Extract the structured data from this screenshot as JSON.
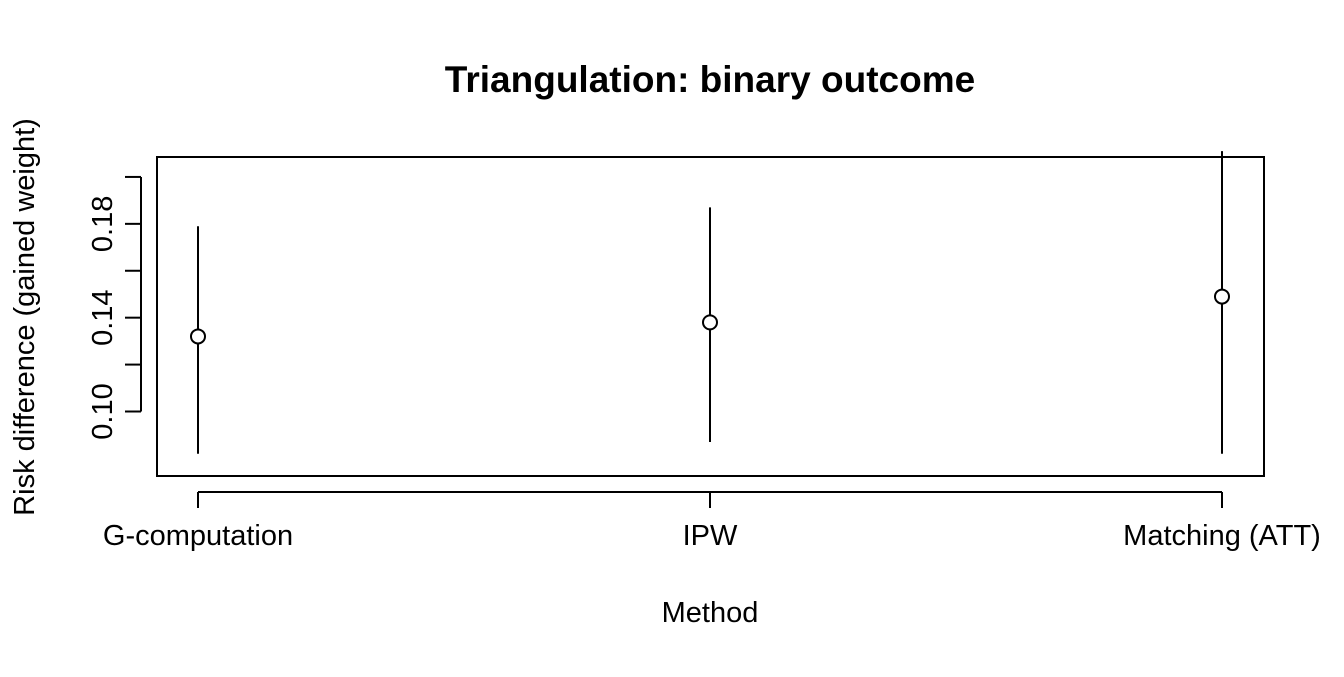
{
  "chart_data": {
    "type": "scatter",
    "title": "Triangulation: binary outcome",
    "xlabel": "Method",
    "ylabel": "Risk difference (gained weight)",
    "categories": [
      "G-computation",
      "IPW",
      "Matching (ATT)"
    ],
    "points": [
      {
        "category": "G-computation",
        "estimate": 0.132,
        "lower": 0.082,
        "upper": 0.179
      },
      {
        "category": "IPW",
        "estimate": 0.138,
        "lower": 0.087,
        "upper": 0.187
      },
      {
        "category": "Matching (ATT)",
        "estimate": 0.149,
        "lower": 0.082,
        "upper": 0.211
      }
    ],
    "yticks": [
      0.1,
      0.12,
      0.14,
      0.16,
      0.18,
      0.2
    ],
    "ytick_labels": [
      "0.10",
      "",
      "0.14",
      "",
      "0.18",
      ""
    ],
    "ylim": [
      0.0725,
      0.2085
    ],
    "grid": false,
    "legend": "none"
  }
}
